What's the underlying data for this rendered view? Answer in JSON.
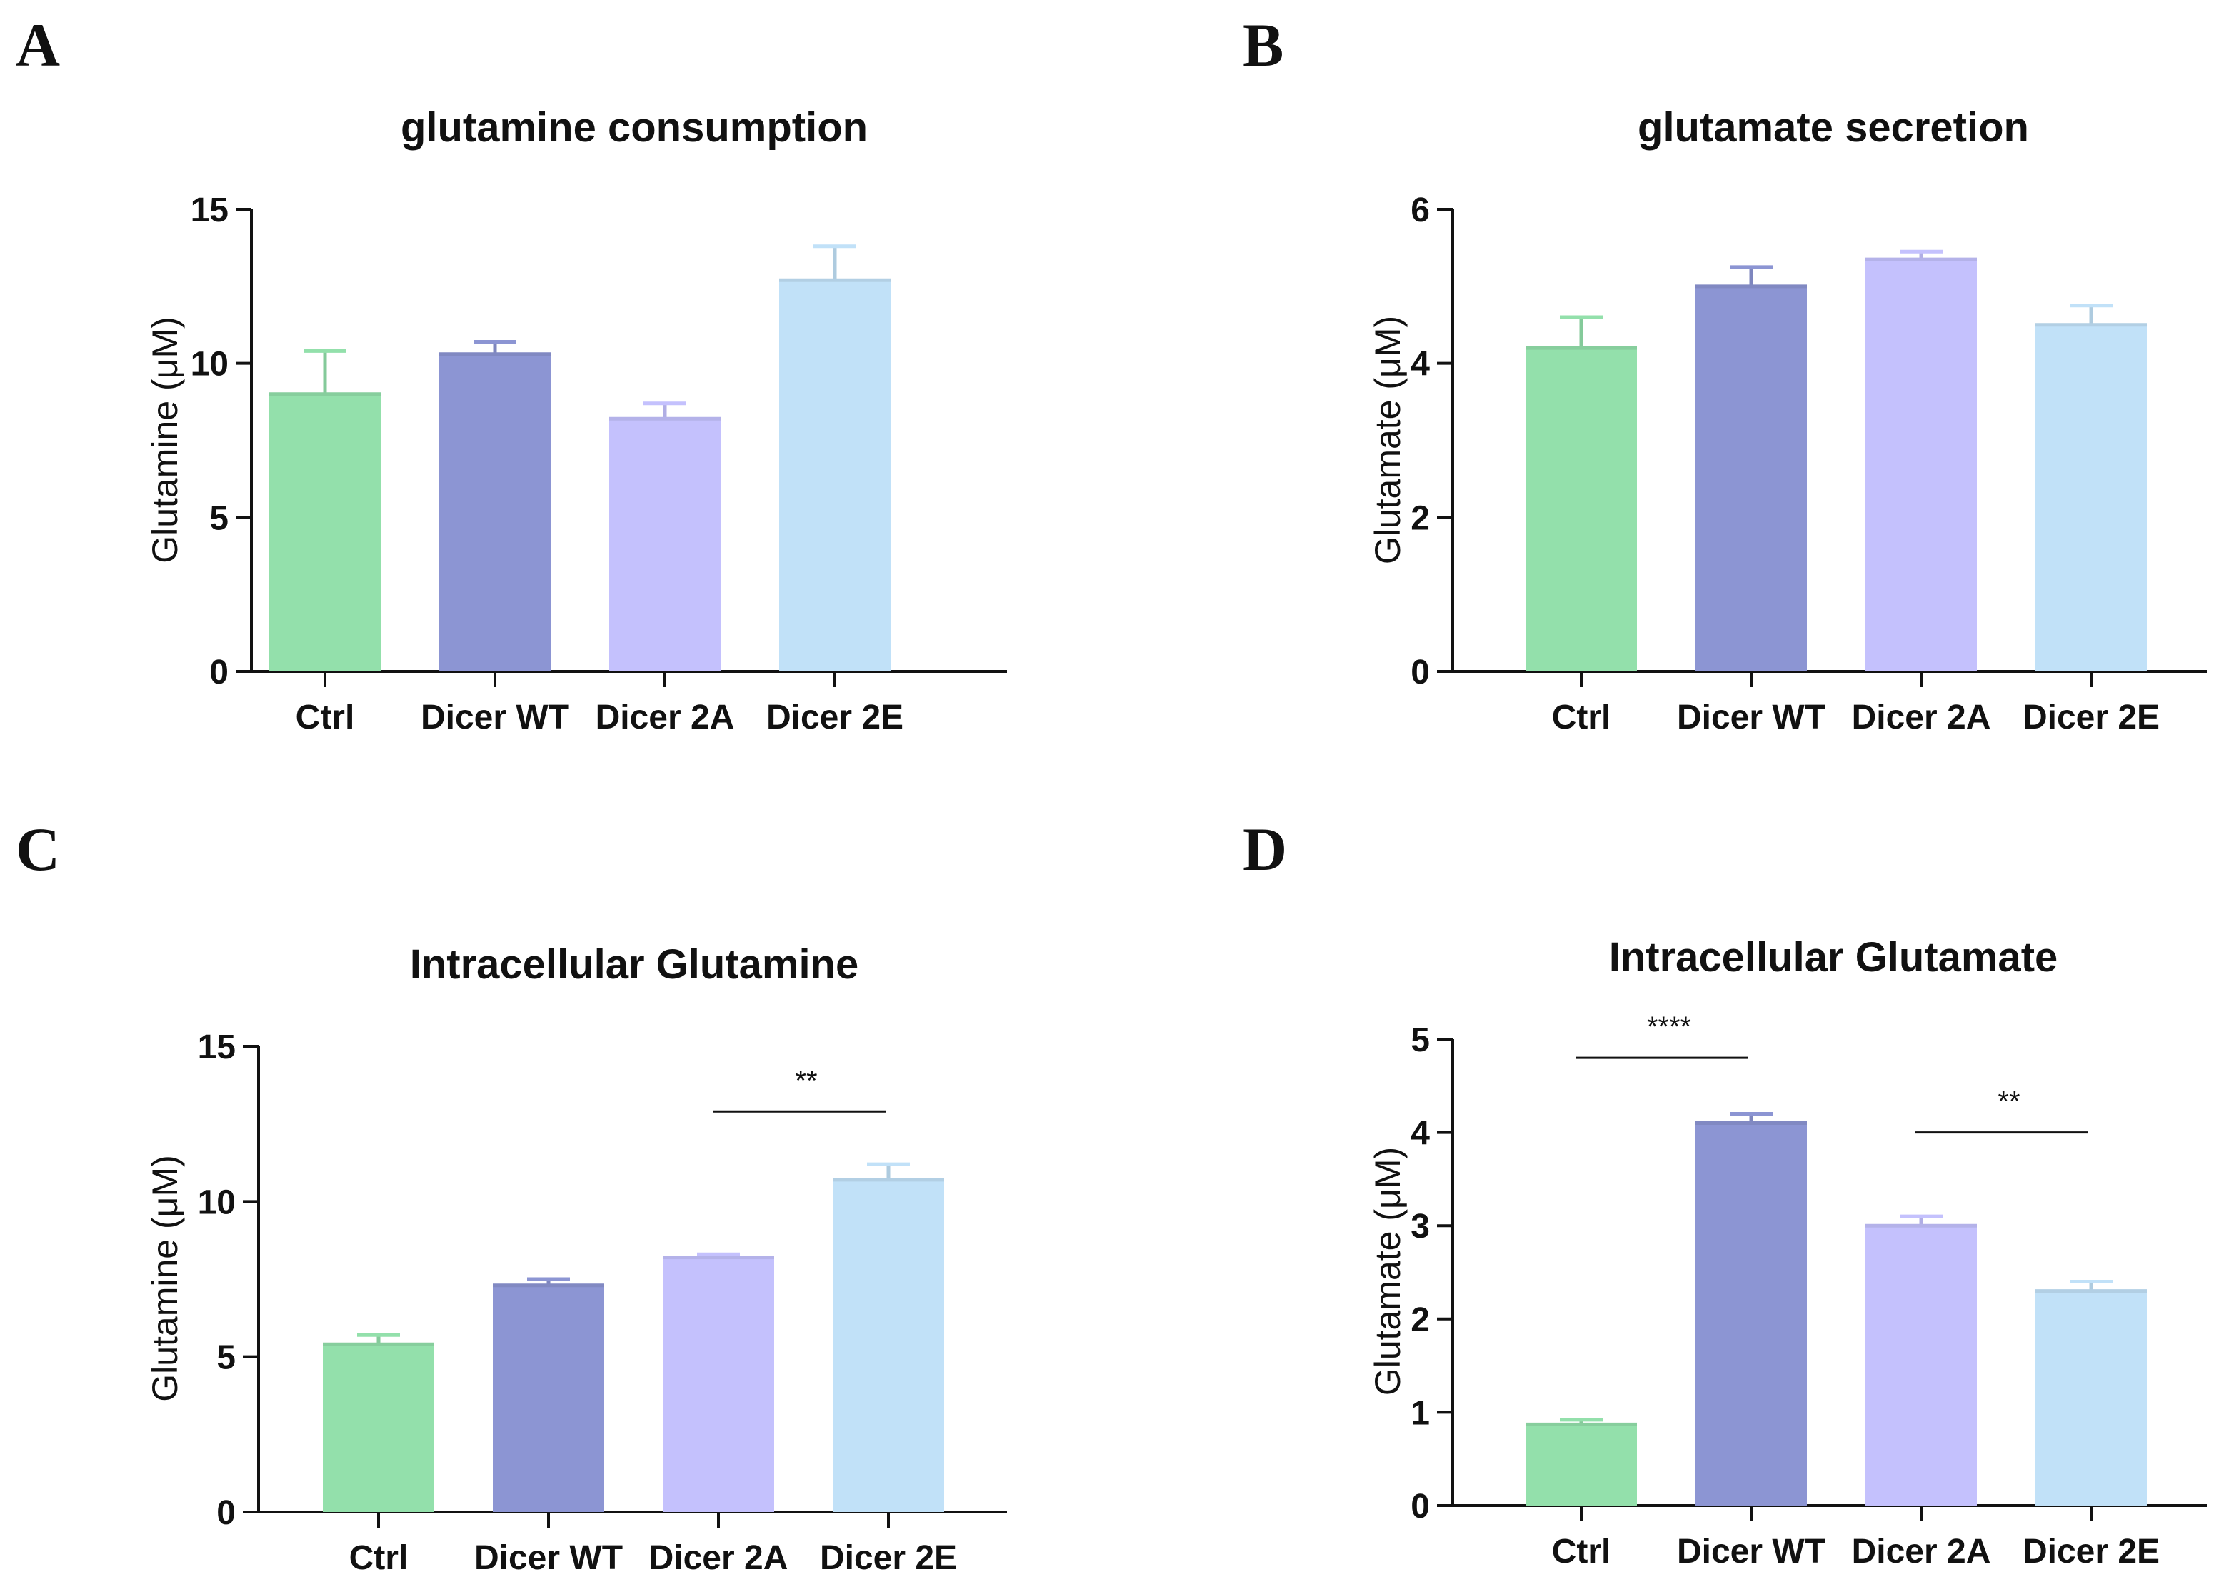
{
  "colors": [
    "#93e0ab",
    "#8c95d3",
    "#c4c1fd",
    "#c1e1f8"
  ],
  "chart_data": [
    {
      "panel": "A",
      "type": "bar",
      "title": "glutamine consumption",
      "ylabel": "Glutamine (μM)",
      "xlabel": "",
      "categories": [
        "Ctrl",
        "Dicer WT",
        "Dicer 2A",
        "Dicer 2E"
      ],
      "values": [
        9.0,
        10.3,
        8.2,
        12.7
      ],
      "errors": [
        1.4,
        0.4,
        0.5,
        1.1
      ],
      "ylim": [
        0,
        15
      ],
      "yticks": [
        0,
        5,
        10,
        15
      ],
      "significance": []
    },
    {
      "panel": "B",
      "type": "bar",
      "title": "glutamate secretion",
      "ylabel": "Glutamate (μM)",
      "xlabel": "",
      "categories": [
        "Ctrl",
        "Dicer WT",
        "Dicer 2A",
        "Dicer 2E"
      ],
      "values": [
        4.2,
        5.0,
        5.35,
        4.5
      ],
      "errors": [
        0.4,
        0.25,
        0.1,
        0.25
      ],
      "ylim": [
        0,
        6
      ],
      "yticks": [
        0,
        2,
        4,
        6
      ],
      "significance": []
    },
    {
      "panel": "C",
      "type": "bar",
      "title": "Intracellular Glutamine",
      "ylabel": "Glutamine (μM)",
      "xlabel": "",
      "categories": [
        "Ctrl",
        "Dicer WT",
        "Dicer 2A",
        "Dicer 2E"
      ],
      "values": [
        5.4,
        7.3,
        8.2,
        10.7
      ],
      "errors": [
        0.3,
        0.2,
        0.1,
        0.5
      ],
      "ylim": [
        0,
        15
      ],
      "yticks": [
        0,
        5,
        10,
        15
      ],
      "significance": [
        {
          "from": 2,
          "to": 3,
          "label": "**",
          "y": 12.9
        }
      ]
    },
    {
      "panel": "D",
      "type": "bar",
      "title": "Intracellular Glutamate",
      "ylabel": "Glutamate (μM)",
      "xlabel": "",
      "categories": [
        "Ctrl",
        "Dicer WT",
        "Dicer 2A",
        "Dicer 2E"
      ],
      "values": [
        0.87,
        4.1,
        3.0,
        2.3
      ],
      "errors": [
        0.05,
        0.1,
        0.1,
        0.1
      ],
      "ylim": [
        0,
        5
      ],
      "yticks": [
        0,
        1,
        2,
        3,
        4,
        5
      ],
      "significance": [
        {
          "from": 0,
          "to": 1,
          "label": "****",
          "y": 4.8
        },
        {
          "from": 2,
          "to": 3,
          "label": "**",
          "y": 4.0
        }
      ]
    }
  ]
}
